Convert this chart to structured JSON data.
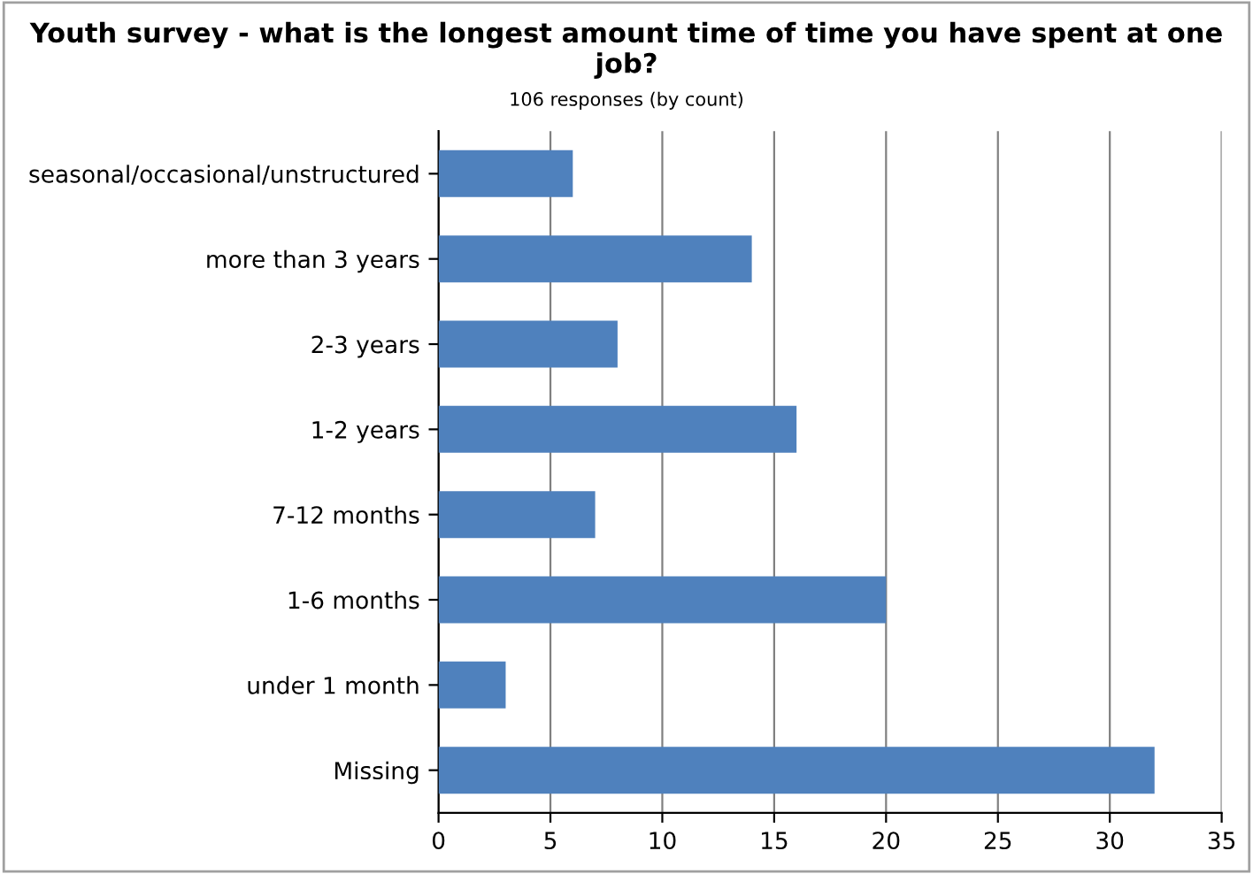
{
  "chart_data": {
    "type": "bar",
    "orientation": "horizontal",
    "title": "Youth survey - what is the longest amount time of time you have spent at one job?",
    "subtitle": "106 responses (by count)",
    "categories": [
      "seasonal/occasional/unstructured",
      "more than 3 years",
      "2-3 years",
      "1-2 years",
      "7-12 months",
      "1-6 months",
      "under 1 month",
      "Missing"
    ],
    "values": [
      6,
      14,
      8,
      16,
      7,
      20,
      3,
      32
    ],
    "color": "#4f81bd",
    "xlim": [
      0,
      35
    ],
    "xticks": [
      0,
      5,
      10,
      15,
      20,
      25,
      30,
      35
    ],
    "grid": "x"
  }
}
